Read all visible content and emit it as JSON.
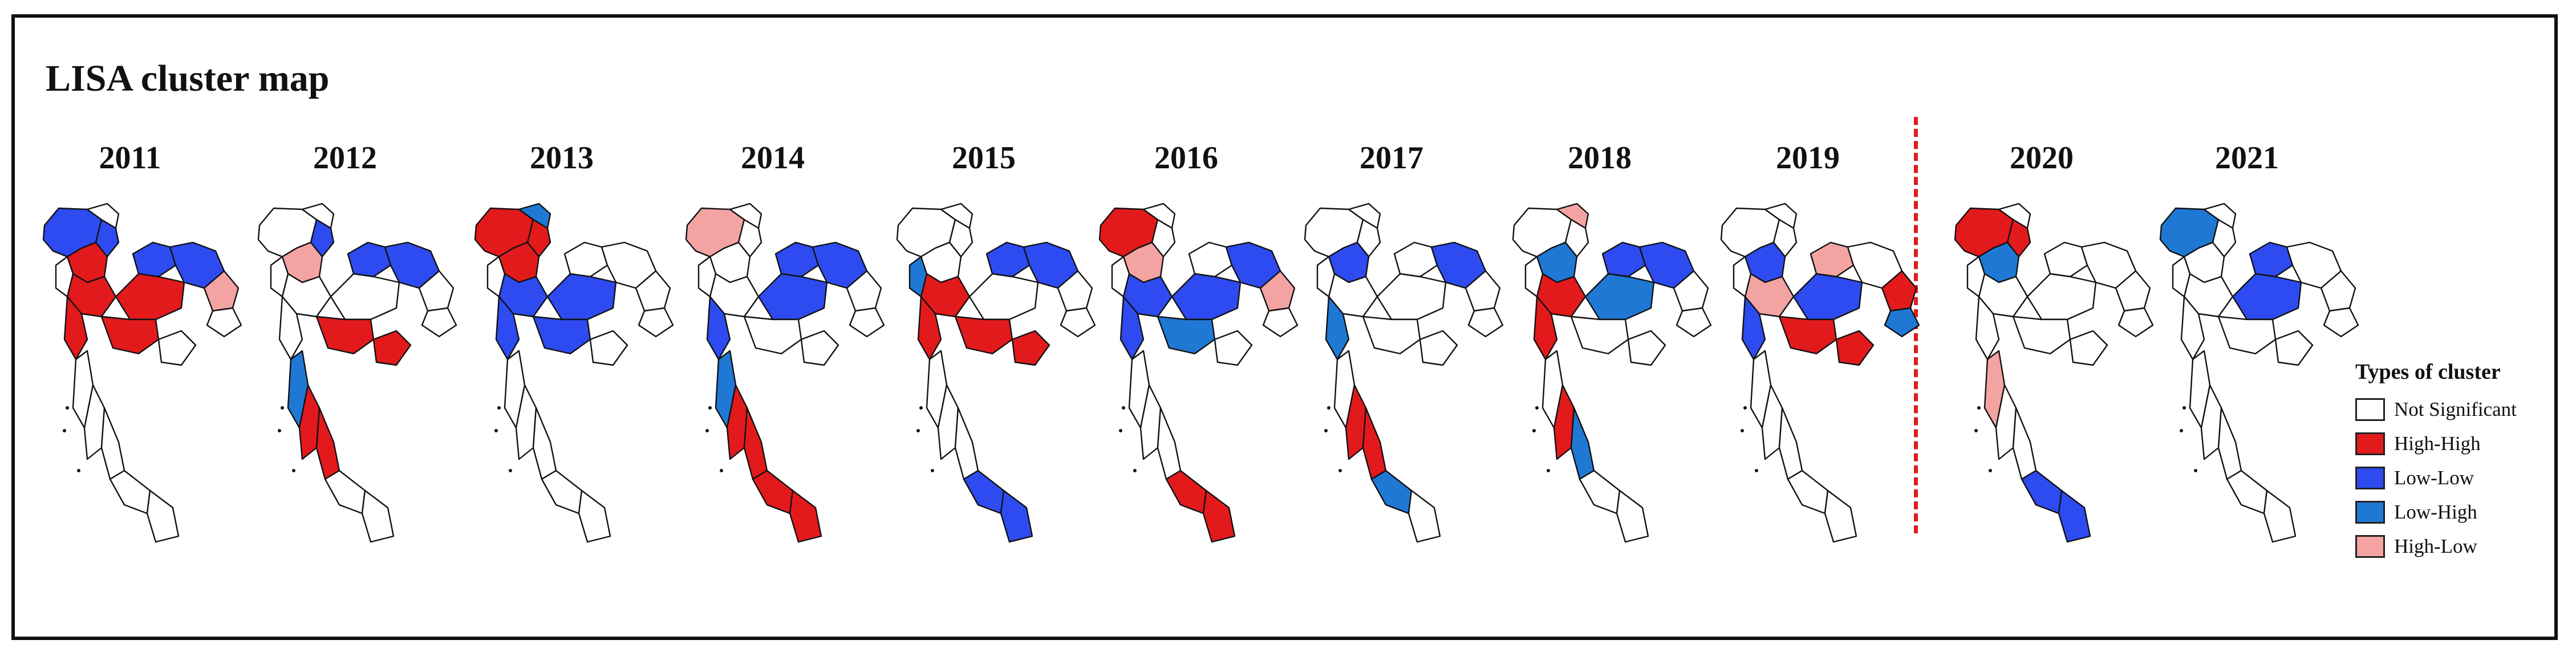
{
  "title": "LISA cluster map",
  "legend": {
    "title": "Types of cluster",
    "items": [
      {
        "label": "Not Significant",
        "color": "#ffffff"
      },
      {
        "label": "High-High",
        "color": "#e31a1c"
      },
      {
        "label": "Low-Low",
        "color": "#2d4bf0"
      },
      {
        "label": "Low-High",
        "color": "#1f78d4"
      },
      {
        "label": "High-Low",
        "color": "#f4a3a3"
      }
    ]
  },
  "maps": [
    {
      "year": "2011",
      "clusters": {
        "high-high": [
          "north-center",
          "central-a",
          "central-b",
          "west",
          "east-a"
        ],
        "low-low": [
          "north-west",
          "north-a",
          "northeast-a",
          "northeast-b"
        ],
        "low-high": [],
        "high-low": [
          "northeast-east"
        ]
      }
    },
    {
      "year": "2012",
      "clusters": {
        "high-high": [
          "east-a",
          "east-b",
          "south-a",
          "south-b"
        ],
        "low-low": [
          "north-a",
          "northeast-a",
          "northeast-b"
        ],
        "low-high": [
          "south-west"
        ],
        "high-low": [
          "north-center"
        ]
      }
    },
    {
      "year": "2013",
      "clusters": {
        "high-high": [
          "north-west",
          "north-a",
          "north-center"
        ],
        "low-low": [
          "central-a",
          "central-b",
          "west",
          "east-a"
        ],
        "low-high": [
          "north-north"
        ],
        "high-low": []
      }
    },
    {
      "year": "2014",
      "clusters": {
        "high-high": [
          "south-a",
          "south-b",
          "south-c",
          "south-d"
        ],
        "low-low": [
          "northeast-a",
          "northeast-b",
          "central-b",
          "west"
        ],
        "low-high": [
          "south-west"
        ],
        "high-low": [
          "north-west"
        ]
      }
    },
    {
      "year": "2015",
      "clusters": {
        "high-high": [
          "central-a",
          "east-a",
          "east-b",
          "west"
        ],
        "low-low": [
          "northeast-a",
          "northeast-b",
          "south-c",
          "south-d"
        ],
        "low-high": [
          "west-upper"
        ],
        "high-low": []
      }
    },
    {
      "year": "2016",
      "clusters": {
        "high-high": [
          "north-west",
          "south-c",
          "south-d"
        ],
        "low-low": [
          "central-a",
          "central-b",
          "west",
          "northeast-b"
        ],
        "low-high": [
          "east-a"
        ],
        "high-low": [
          "north-center",
          "northeast-east"
        ]
      }
    },
    {
      "year": "2017",
      "clusters": {
        "high-high": [
          "south-a",
          "south-b"
        ],
        "low-low": [
          "north-center",
          "northeast-b"
        ],
        "low-high": [
          "west",
          "south-c"
        ],
        "high-low": []
      }
    },
    {
      "year": "2018",
      "clusters": {
        "high-high": [
          "central-a",
          "west",
          "south-a"
        ],
        "low-low": [
          "northeast-a",
          "northeast-b"
        ],
        "low-high": [
          "central-b",
          "north-center",
          "south-b"
        ],
        "high-low": [
          "north-north"
        ]
      }
    },
    {
      "year": "2019",
      "clusters": {
        "high-high": [
          "east-a",
          "east-b",
          "northeast-east"
        ],
        "low-low": [
          "north-center",
          "central-b",
          "west"
        ],
        "low-high": [
          "northeast-far"
        ],
        "high-low": [
          "northeast-a",
          "central-a"
        ]
      }
    },
    {
      "year": "2020",
      "clusters": {
        "high-high": [
          "north-west",
          "north-a"
        ],
        "low-low": [
          "south-c",
          "south-d"
        ],
        "low-high": [
          "north-center"
        ],
        "high-low": [
          "south-west"
        ]
      }
    },
    {
      "year": "2021",
      "clusters": {
        "high-high": [],
        "low-low": [
          "northeast-a",
          "central-b"
        ],
        "low-high": [
          "north-west"
        ],
        "high-low": []
      }
    }
  ]
}
